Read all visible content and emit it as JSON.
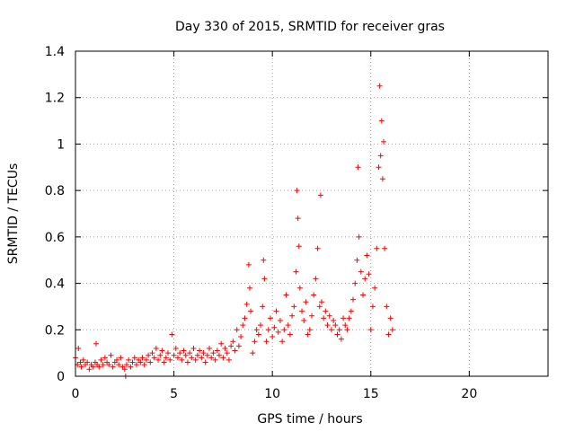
{
  "chart_data": {
    "type": "scatter",
    "title": "Day 330 of 2015, SRMTID for receiver gras",
    "xlabel": "GPS time / hours",
    "ylabel": "SRMTID / TECUs",
    "xlim": [
      0,
      24
    ],
    "ylim": [
      0,
      1.4
    ],
    "x_ticks": [
      0,
      5,
      10,
      15,
      20
    ],
    "x_tick_labels": [
      "0",
      "5",
      "10",
      "15",
      "20"
    ],
    "y_ticks": [
      0,
      0.2,
      0.4,
      0.6,
      0.8,
      1,
      1.2,
      1.4
    ],
    "y_tick_labels": [
      "0",
      "0.2",
      "0.4",
      "0.6",
      "0.8",
      "1",
      "1.2",
      "1.4"
    ],
    "grid": true,
    "marker": "+",
    "marker_color": "#ff0000",
    "series": [
      {
        "name": "SRMTID",
        "x": [
          0.0,
          0.1,
          0.15,
          0.25,
          0.3,
          0.4,
          0.5,
          0.6,
          0.7,
          0.8,
          0.9,
          1.0,
          1.05,
          1.1,
          1.2,
          1.3,
          1.4,
          1.5,
          1.6,
          1.7,
          1.8,
          1.9,
          2.0,
          2.1,
          2.2,
          2.3,
          2.4,
          2.5,
          2.55,
          2.6,
          2.7,
          2.8,
          2.9,
          3.0,
          3.1,
          3.2,
          3.3,
          3.4,
          3.5,
          3.6,
          3.7,
          3.8,
          3.9,
          4.0,
          4.1,
          4.2,
          4.3,
          4.4,
          4.5,
          4.6,
          4.7,
          4.8,
          4.9,
          5.0,
          5.1,
          5.2,
          5.3,
          5.4,
          5.5,
          5.6,
          5.7,
          5.8,
          5.9,
          6.0,
          6.1,
          6.2,
          6.3,
          6.4,
          6.5,
          6.6,
          6.7,
          6.8,
          6.9,
          7.0,
          7.1,
          7.2,
          7.3,
          7.4,
          7.5,
          7.6,
          7.7,
          7.8,
          7.9,
          8.0,
          8.1,
          8.2,
          8.3,
          8.4,
          8.5,
          8.6,
          8.7,
          8.8,
          8.85,
          8.9,
          9.0,
          9.1,
          9.2,
          9.3,
          9.4,
          9.5,
          9.55,
          9.6,
          9.7,
          9.8,
          9.9,
          10.0,
          10.1,
          10.2,
          10.3,
          10.4,
          10.5,
          10.6,
          10.7,
          10.8,
          10.9,
          11.0,
          11.1,
          11.2,
          11.25,
          11.3,
          11.35,
          11.4,
          11.5,
          11.6,
          11.7,
          11.8,
          11.9,
          12.0,
          12.1,
          12.2,
          12.3,
          12.4,
          12.45,
          12.5,
          12.6,
          12.7,
          12.8,
          12.9,
          13.0,
          13.1,
          13.2,
          13.3,
          13.4,
          13.5,
          13.6,
          13.7,
          13.8,
          13.9,
          14.0,
          14.1,
          14.2,
          14.3,
          14.35,
          14.4,
          14.5,
          14.6,
          14.7,
          14.8,
          14.9,
          15.0,
          15.1,
          15.2,
          15.3,
          15.4,
          15.45,
          15.5,
          15.55,
          15.6,
          15.65,
          15.7,
          15.8,
          15.9,
          16.0,
          16.1
        ],
        "y": [
          0.08,
          0.05,
          0.12,
          0.06,
          0.04,
          0.07,
          0.05,
          0.06,
          0.03,
          0.05,
          0.04,
          0.06,
          0.14,
          0.05,
          0.04,
          0.07,
          0.05,
          0.08,
          0.06,
          0.05,
          0.09,
          0.04,
          0.06,
          0.07,
          0.05,
          0.08,
          0.04,
          0.03,
          0.0,
          0.05,
          0.07,
          0.04,
          0.06,
          0.08,
          0.05,
          0.07,
          0.06,
          0.08,
          0.05,
          0.07,
          0.09,
          0.06,
          0.1,
          0.08,
          0.12,
          0.07,
          0.09,
          0.11,
          0.06,
          0.08,
          0.1,
          0.07,
          0.18,
          0.09,
          0.12,
          0.08,
          0.1,
          0.07,
          0.11,
          0.09,
          0.06,
          0.1,
          0.08,
          0.12,
          0.07,
          0.09,
          0.11,
          0.08,
          0.1,
          0.06,
          0.09,
          0.12,
          0.08,
          0.1,
          0.07,
          0.11,
          0.09,
          0.14,
          0.08,
          0.12,
          0.1,
          0.07,
          0.13,
          0.15,
          0.11,
          0.2,
          0.13,
          0.17,
          0.22,
          0.25,
          0.31,
          0.48,
          0.38,
          0.28,
          0.1,
          0.15,
          0.2,
          0.18,
          0.22,
          0.3,
          0.5,
          0.42,
          0.15,
          0.2,
          0.25,
          0.17,
          0.21,
          0.28,
          0.19,
          0.24,
          0.15,
          0.2,
          0.35,
          0.22,
          0.18,
          0.26,
          0.3,
          0.45,
          0.8,
          0.68,
          0.56,
          0.38,
          0.28,
          0.24,
          0.32,
          0.18,
          0.2,
          0.26,
          0.35,
          0.42,
          0.55,
          0.3,
          0.78,
          0.32,
          0.25,
          0.28,
          0.22,
          0.26,
          0.2,
          0.24,
          0.22,
          0.18,
          0.2,
          0.16,
          0.25,
          0.22,
          0.2,
          0.25,
          0.28,
          0.33,
          0.4,
          0.5,
          0.9,
          0.6,
          0.45,
          0.35,
          0.42,
          0.52,
          0.44,
          0.2,
          0.3,
          0.38,
          0.55,
          0.9,
          1.25,
          0.95,
          1.1,
          0.85,
          1.01,
          0.55,
          0.3,
          0.18,
          0.25,
          0.2
        ]
      }
    ]
  }
}
